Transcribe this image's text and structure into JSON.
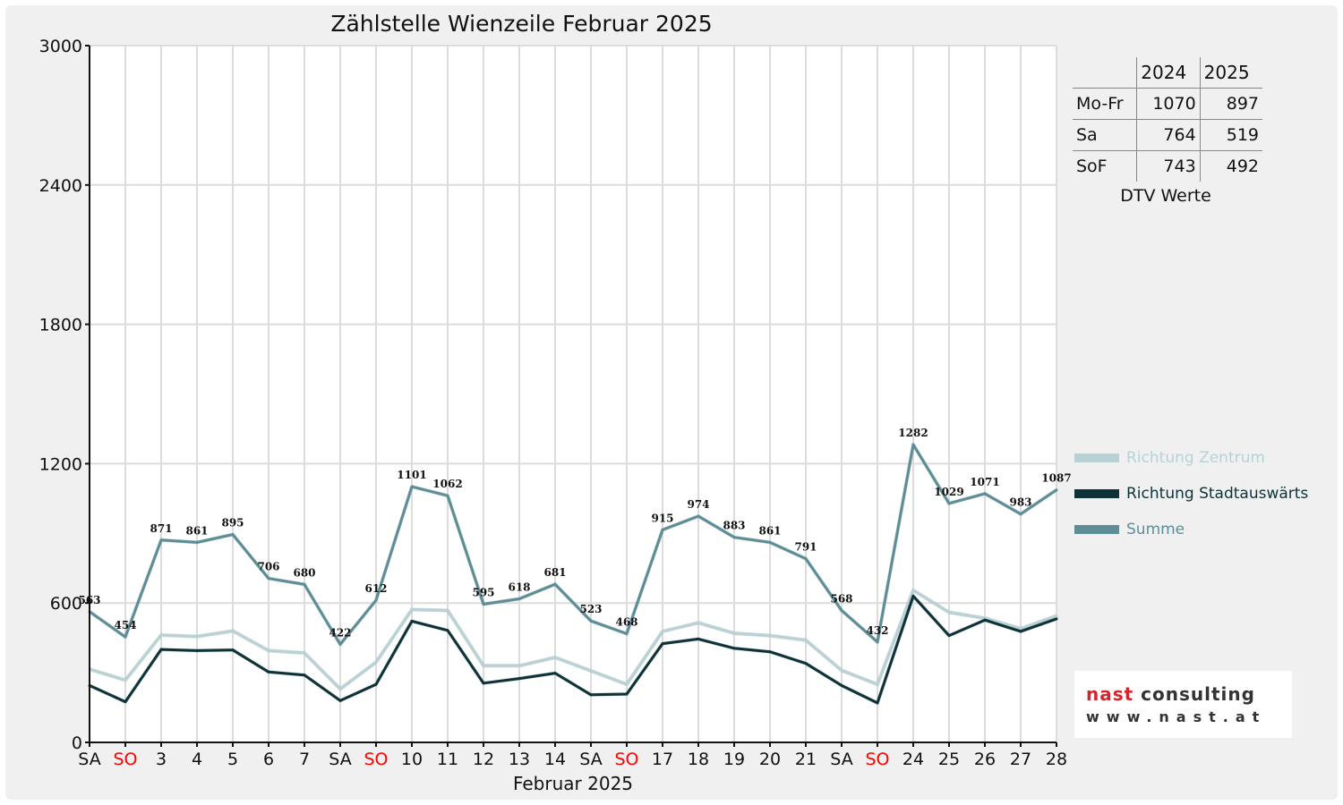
{
  "chart_data": {
    "type": "line",
    "title": "Zählstelle Wienzeile Februar 2025",
    "xlabel": "Februar 2025",
    "ylabel": "",
    "ylim": [
      0,
      3000
    ],
    "yticks": [
      0,
      600,
      1200,
      1800,
      2400,
      3000
    ],
    "ytick_labels": [
      "0",
      "600",
      "1200",
      "1800",
      "2400",
      "3000"
    ],
    "grid": true,
    "categories": [
      "SA",
      "SO",
      "3",
      "4",
      "5",
      "6",
      "7",
      "SA",
      "SO",
      "10",
      "11",
      "12",
      "13",
      "14",
      "SA",
      "SO",
      "17",
      "18",
      "19",
      "20",
      "21",
      "SA",
      "SO",
      "24",
      "25",
      "26",
      "27",
      "28"
    ],
    "weekend_color": "#ff0000",
    "weekend_categories_index": [
      1,
      8,
      15,
      22
    ],
    "series": [
      {
        "name": "Richtung Zentrum",
        "color": "#b8d2d6",
        "values": [
          315,
          268,
          462,
          456,
          480,
          395,
          385,
          230,
          345,
          572,
          568,
          330,
          330,
          366,
          308,
          250,
          478,
          515,
          470,
          460,
          440,
          310,
          250,
          655,
          560,
          535,
          490,
          545
        ]
      },
      {
        "name": "Richtung Stadtauswärts",
        "color": "#0d3238",
        "values": [
          245,
          175,
          400,
          395,
          398,
          303,
          290,
          180,
          250,
          522,
          482,
          255,
          275,
          298,
          205,
          208,
          425,
          445,
          405,
          390,
          340,
          245,
          170,
          630,
          460,
          527,
          478,
          532
        ]
      },
      {
        "name": "Summe",
        "color": "#5d8e98",
        "values": [
          563,
          454,
          871,
          861,
          895,
          706,
          680,
          422,
          612,
          1101,
          1062,
          595,
          618,
          681,
          523,
          468,
          915,
          974,
          883,
          861,
          791,
          568,
          432,
          1282,
          1029,
          1071,
          983,
          1087
        ]
      }
    ],
    "data_labels": [
      "563",
      "454",
      "871",
      "861",
      "895",
      "706",
      "680",
      "422",
      "612",
      "1101",
      "1062",
      "595",
      "618",
      "681",
      "523",
      "468",
      "915",
      "974",
      "883",
      "861",
      "791",
      "568",
      "432",
      "1282",
      "1029",
      "1071",
      "983",
      "1087"
    ],
    "legend_position": "right"
  },
  "dtv": {
    "headers": [
      "",
      "2024",
      "2025"
    ],
    "rows": [
      {
        "label": "Mo-Fr",
        "v2024": "1070",
        "v2025": "897"
      },
      {
        "label": "Sa",
        "v2024": "764",
        "v2025": "519"
      },
      {
        "label": "SoF",
        "v2024": "743",
        "v2025": "492"
      }
    ],
    "caption": "DTV Werte"
  },
  "logo": {
    "name_part1": "nast",
    "name_part2": " consulting",
    "url": "www.nast.at",
    "accent_color": "#d5252b"
  }
}
